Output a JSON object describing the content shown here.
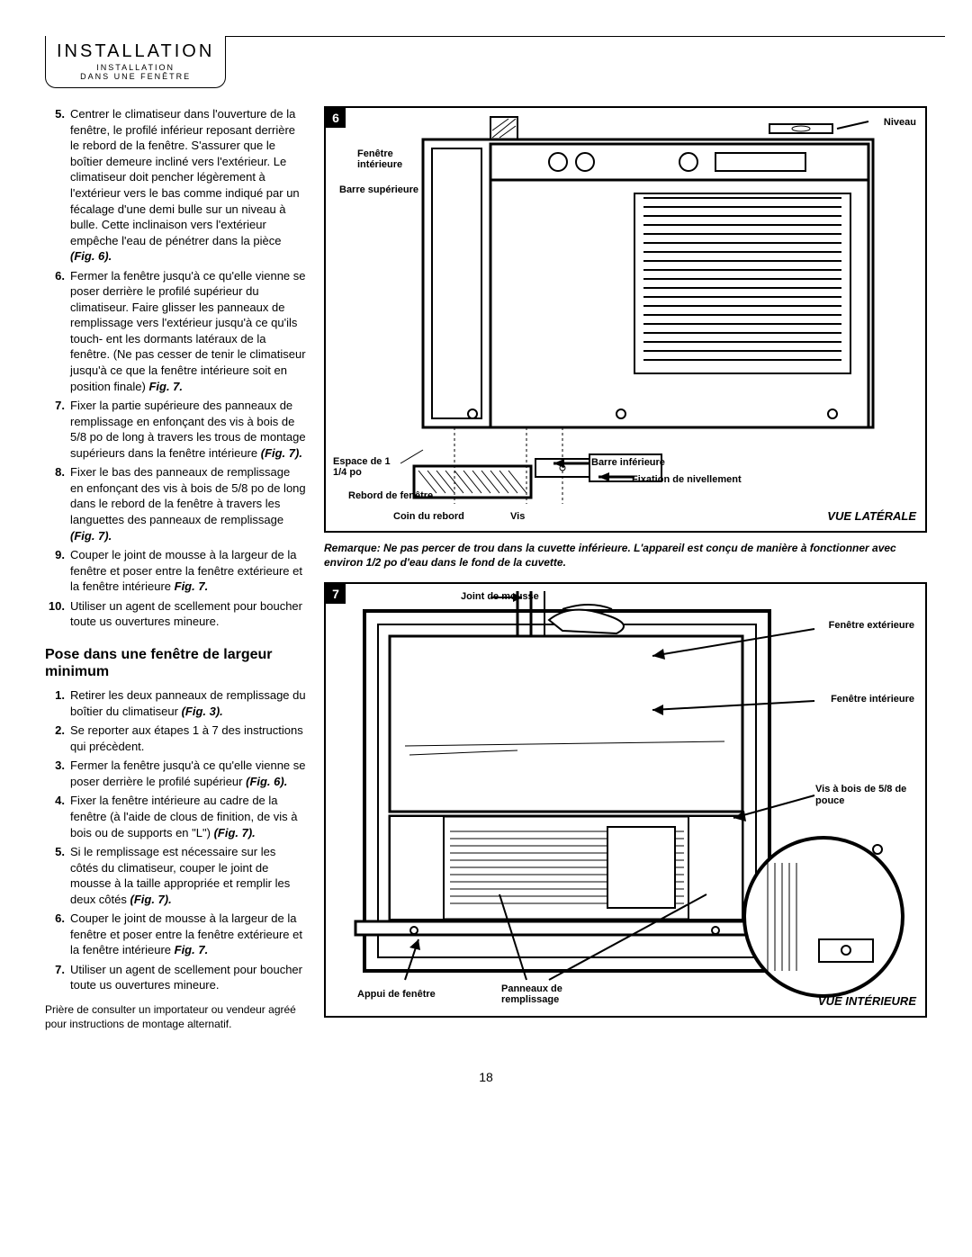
{
  "header": {
    "title": "INSTALLATION",
    "sub1": "INSTALLATION",
    "sub2": "DANS UNE FENÊTRE"
  },
  "list1": [
    {
      "n": "5.",
      "t": "Centrer le climatiseur dans l'ouverture de la fenêtre, le profilé inférieur reposant derrière le rebord de la fenêtre. S'assurer que le boîtier demeure incliné vers l'extérieur. Le climatiseur doit pencher légèrement à l'extérieur vers le bas comme indiqué par un fécalage d'une demi bulle sur un niveau à bulle. Cette inclinaison vers l'extérieur empêche l'eau de pénétrer dans la pièce ",
      "ref": "(Fig. 6)."
    },
    {
      "n": "6.",
      "t": "Fermer la fenêtre jusqu'à ce qu'elle vienne se poser derrière le profilé supérieur du climatiseur. Faire glisser les panneaux de remplissage vers l'extérieur jusqu'à ce qu'ils touch- ent les dormants latéraux de la fenêtre. (Ne pas cesser de tenir le climatiseur jusqu'à ce que la fenêtre intérieure soit en position finale) ",
      "ref": "Fig. 7."
    },
    {
      "n": "7.",
      "t": "Fixer la partie supérieure des panneaux de remplissage en enfonçant des vis à bois de 5/8 po de long à travers les trous de montage supérieurs dans la fenêtre intérieure ",
      "ref": "(Fig. 7)."
    },
    {
      "n": "8.",
      "t": "Fixer le bas des panneaux de remplissage en enfonçant des vis à bois de 5/8 po de long dans le rebord de la fenêtre à travers les languettes des panneaux de remplissage ",
      "ref": "(Fig. 7)."
    },
    {
      "n": "9.",
      "t": "Couper le joint de mousse à la largeur de la fenêtre et poser entre la fenêtre extérieure et la fenêtre intérieure ",
      "ref": "Fig. 7."
    },
    {
      "n": "10.",
      "t": "Utiliser un agent de scellement pour boucher toute us ouvertures mineure.",
      "ref": ""
    }
  ],
  "section2_title": "Pose dans une fenêtre de largeur minimum",
  "list2": [
    {
      "n": "1.",
      "t": "Retirer les deux panneaux de remplissage du boîtier du climatiseur ",
      "ref": "(Fig. 3)."
    },
    {
      "n": "2.",
      "t": "Se reporter aux étapes 1 à 7 des instructions qui précèdent.",
      "ref": ""
    },
    {
      "n": "3.",
      "t": "Fermer la fenêtre jusqu'à ce qu'elle vienne se poser derrière le profilé supérieur ",
      "ref": "(Fig. 6)."
    },
    {
      "n": "4.",
      "t": "Fixer la fenêtre intérieure au cadre de la fenêtre (à l'aide de clous de finition, de vis à bois ou de supports en \"L\") ",
      "ref": "(Fig. 7)."
    },
    {
      "n": "5.",
      "t": "Si le remplissage est nécessaire sur les côtés du climatiseur, couper le joint de mousse à la taille appropriée et remplir les deux côtés ",
      "ref": "(Fig. 7)."
    },
    {
      "n": "6.",
      "t": "Couper le joint de mousse à la largeur de la fenêtre et poser entre la fenêtre extérieure et la fenêtre intérieure ",
      "ref": "Fig. 7."
    },
    {
      "n": "7.",
      "t": "Utiliser un agent de scellement pour boucher toute us ouvertures mineure.",
      "ref": ""
    }
  ],
  "bottom_note": "Prière de consulter un importateur ou vendeur agréé pour instructions de montage alternatif.",
  "fig6": {
    "num": "6",
    "labels": {
      "niveau": "Niveau",
      "fenetre_int": "Fenêtre intérieure",
      "barre_sup": "Barre supérieure",
      "espace": "Espace de 1 1/4 po",
      "rebord": "Rebord de fenêtre",
      "coin": "Coin du rebord",
      "vis": "Vis",
      "barre_inf": "Barre inférieure",
      "fixation": "Fixation de nivellement",
      "view": "VUE LATÉRALE"
    }
  },
  "remark": "Remarque: Ne pas percer de trou dans la cuvette inférieure. L'appareil est conçu de manière à fonctionner avec environ 1/2 po d'eau dans le fond de la cuvette.",
  "fig7": {
    "num": "7",
    "labels": {
      "joint": "Joint de mousse",
      "fen_ext": "Fenêtre extérieure",
      "fen_int": "Fenêtre intérieure",
      "vis_bois": "Vis à bois de 5/8 de pouce",
      "appui": "Appui de fenêtre",
      "panneaux": "Panneaux de remplissage",
      "view": "VUE INTÉRIEURE"
    }
  },
  "page": "18"
}
